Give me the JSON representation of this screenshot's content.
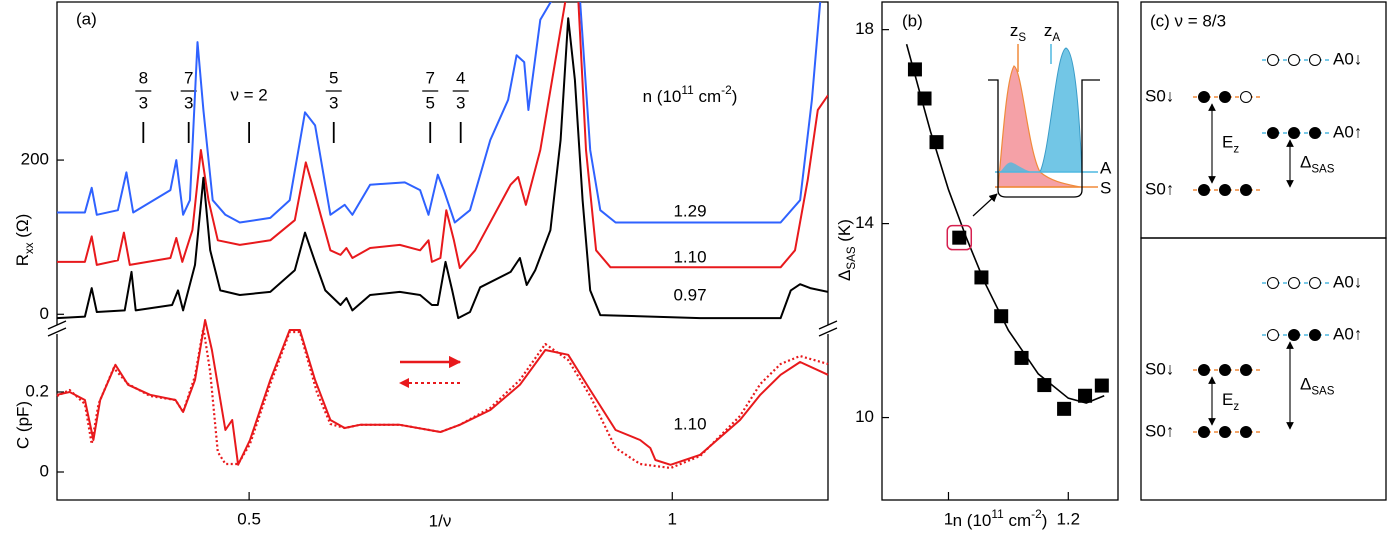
{
  "chart_data": [
    {
      "type": "line",
      "panel_label": "(a)",
      "ylabel": {
        "main": "R",
        "sub": "xx",
        "rest": " (Ω)"
      },
      "xlim": [
        0.273,
        1.184
      ],
      "ylim": [
        -10,
        405
      ],
      "yticks": [
        0,
        200
      ],
      "legend_title": [
        {
          "text": "n (10"
        },
        {
          "text": "11",
          "sup": true
        },
        {
          "text": " cm"
        },
        {
          "text": "-2",
          "sup": true
        },
        {
          "text": ")"
        }
      ],
      "filling_factors": [
        {
          "numerator": "8",
          "denominator": "3",
          "x": 0.375
        },
        {
          "numerator": "7",
          "denominator": "3",
          "x": 0.4286
        },
        {
          "text": "ν = 2",
          "x": 0.5
        },
        {
          "numerator": "5",
          "denominator": "3",
          "x": 0.6
        },
        {
          "numerator": "7",
          "denominator": "5",
          "x": 0.714
        },
        {
          "numerator": "4",
          "denominator": "3",
          "x": 0.75
        }
      ],
      "series": [
        {
          "name": "1.29",
          "color": "#2f62ff",
          "x": [
            0.273,
            0.306,
            0.314,
            0.32,
            0.345,
            0.355,
            0.363,
            0.407,
            0.414,
            0.422,
            0.43,
            0.439,
            0.446,
            0.457,
            0.472,
            0.489,
            0.525,
            0.548,
            0.566,
            0.578,
            0.596,
            0.613,
            0.622,
            0.643,
            0.684,
            0.702,
            0.712,
            0.723,
            0.73,
            0.743,
            0.761,
            0.785,
            0.806,
            0.816,
            0.825,
            0.83,
            0.844,
            0.858,
            0.874,
            0.891,
            0.903,
            0.915,
            0.933,
            1.128,
            1.151,
            1.165,
            1.175,
            1.184
          ],
          "values": [
            132,
            132,
            164,
            129,
            135,
            184,
            132,
            161,
            200,
            129,
            148,
            353,
            265,
            148,
            129,
            119,
            125,
            148,
            262,
            245,
            129,
            142,
            129,
            168,
            171,
            161,
            129,
            181,
            161,
            119,
            135,
            226,
            278,
            336,
            327,
            265,
            382,
            408,
            408,
            408,
            213,
            135,
            119,
            119,
            148,
            278,
            408,
            408
          ]
        },
        {
          "name": "1.10",
          "color": "#e8191c",
          "x": [
            0.273,
            0.306,
            0.314,
            0.32,
            0.345,
            0.352,
            0.359,
            0.407,
            0.414,
            0.421,
            0.433,
            0.443,
            0.452,
            0.463,
            0.489,
            0.525,
            0.554,
            0.567,
            0.578,
            0.596,
            0.608,
            0.615,
            0.622,
            0.643,
            0.678,
            0.702,
            0.712,
            0.716,
            0.726,
            0.733,
            0.742,
            0.749,
            0.767,
            0.809,
            0.818,
            0.827,
            0.844,
            0.862,
            0.874,
            0.889,
            0.898,
            0.91,
            0.927,
            1.128,
            1.145,
            1.16,
            1.172,
            1.184
          ],
          "values": [
            68,
            68,
            101,
            64,
            70,
            106,
            64,
            73,
            99,
            68,
            109,
            213,
            148,
            96,
            90,
            96,
            122,
            197,
            155,
            83,
            77,
            86,
            73,
            86,
            90,
            83,
            96,
            68,
            73,
            135,
            96,
            60,
            83,
            168,
            178,
            142,
            213,
            330,
            408,
            408,
            213,
            83,
            61,
            61,
            83,
            174,
            265,
            284
          ]
        },
        {
          "name": "0.97",
          "color": "#000000",
          "x": [
            0.273,
            0.306,
            0.314,
            0.32,
            0.353,
            0.361,
            0.366,
            0.409,
            0.416,
            0.422,
            0.436,
            0.446,
            0.454,
            0.466,
            0.489,
            0.525,
            0.554,
            0.566,
            0.578,
            0.59,
            0.608,
            0.615,
            0.622,
            0.643,
            0.678,
            0.702,
            0.716,
            0.723,
            0.732,
            0.74,
            0.747,
            0.761,
            0.773,
            0.809,
            0.82,
            0.828,
            0.838,
            0.856,
            0.868,
            0.877,
            0.885,
            0.894,
            0.903,
            0.915,
            1.033,
            1.128,
            1.14,
            1.151,
            1.163,
            1.184
          ],
          "values": [
            -5,
            -3,
            34,
            3,
            5,
            55,
            5,
            12,
            31,
            5,
            64,
            177,
            83,
            31,
            25,
            29,
            57,
            106,
            68,
            31,
            12,
            21,
            5,
            25,
            29,
            25,
            12,
            12,
            68,
            31,
            -5,
            3,
            35,
            55,
            73,
            38,
            57,
            109,
            226,
            384,
            304,
            148,
            31,
            -1,
            -5,
            -5,
            31,
            39,
            34,
            29
          ]
        }
      ]
    },
    {
      "type": "line",
      "ylabel": "C (pF)",
      "xlabel": "1/ν",
      "xlim": [
        0.273,
        1.184
      ],
      "xticks": [
        0.5,
        1
      ],
      "ylim": [
        -0.07,
        0.34
      ],
      "yticks": [
        0,
        0.2
      ],
      "annotation": "1.10",
      "series": [
        {
          "color": "#e8191c",
          "line_style": "solid",
          "x": [
            0.273,
            0.288,
            0.306,
            0.316,
            0.324,
            0.342,
            0.357,
            0.383,
            0.413,
            0.422,
            0.436,
            0.448,
            0.456,
            0.472,
            0.48,
            0.487,
            0.501,
            0.525,
            0.548,
            0.56,
            0.578,
            0.596,
            0.613,
            0.631,
            0.678,
            0.726,
            0.749,
            0.785,
            0.82,
            0.85,
            0.877,
            0.903,
            0.933,
            0.962,
            0.974,
            0.98,
            0.998,
            1.033,
            1.08,
            1.104,
            1.128,
            1.151,
            1.184
          ],
          "values": [
            0.193,
            0.2,
            0.18,
            0.08,
            0.18,
            0.268,
            0.218,
            0.193,
            0.18,
            0.15,
            0.23,
            0.38,
            0.305,
            0.105,
            0.13,
            0.018,
            0.08,
            0.23,
            0.355,
            0.355,
            0.23,
            0.13,
            0.11,
            0.118,
            0.118,
            0.1,
            0.118,
            0.155,
            0.218,
            0.305,
            0.293,
            0.205,
            0.105,
            0.08,
            0.06,
            0.03,
            0.018,
            0.043,
            0.13,
            0.193,
            0.243,
            0.275,
            0.243
          ]
        },
        {
          "color": "#e8191c",
          "line_style": "dotted",
          "x": [
            0.273,
            0.288,
            0.306,
            0.314,
            0.322,
            0.34,
            0.357,
            0.383,
            0.413,
            0.422,
            0.436,
            0.446,
            0.454,
            0.463,
            0.472,
            0.487,
            0.501,
            0.525,
            0.548,
            0.56,
            0.58,
            0.596,
            0.613,
            0.631,
            0.678,
            0.726,
            0.749,
            0.785,
            0.82,
            0.85,
            0.877,
            0.903,
            0.933,
            0.962,
            0.998,
            1.033,
            1.08,
            1.104,
            1.128,
            1.151,
            1.184
          ],
          "values": [
            0.19,
            0.205,
            0.17,
            0.07,
            0.17,
            0.26,
            0.22,
            0.19,
            0.18,
            0.15,
            0.24,
            0.36,
            0.25,
            0.05,
            0.02,
            0.02,
            0.07,
            0.22,
            0.35,
            0.35,
            0.2,
            0.12,
            0.11,
            0.118,
            0.118,
            0.1,
            0.118,
            0.16,
            0.23,
            0.32,
            0.28,
            0.19,
            0.06,
            0.02,
            0.01,
            0.04,
            0.14,
            0.22,
            0.27,
            0.29,
            0.27
          ]
        }
      ]
    },
    {
      "type": "scatter",
      "panel_label": "(b)",
      "ylabel": {
        "main": "Δ",
        "sub": "SAS",
        "rest": " (K)"
      },
      "xlabel": [
        {
          "text": "n (10"
        },
        {
          "text": "11",
          "sup": true
        },
        {
          "text": " cm"
        },
        {
          "text": "-2",
          "sup": true
        },
        {
          "text": ")"
        }
      ],
      "xlim": [
        0.889,
        1.283
      ],
      "xticks": [
        1,
        1.2
      ],
      "ylim": [
        8.3,
        18.57
      ],
      "yticks": [
        10,
        14,
        18
      ],
      "color": "#000000",
      "x": [
        0.944,
        0.96,
        0.98,
        1.018,
        1.055,
        1.088,
        1.122,
        1.16,
        1.193,
        1.228,
        1.256
      ],
      "values": [
        17.18,
        16.58,
        15.68,
        13.71,
        12.89,
        12.09,
        11.23,
        10.67,
        10.18,
        10.45,
        10.66
      ],
      "fit": {
        "color": "#000000",
        "x": [
          0.93,
          0.95,
          0.97,
          1.0,
          1.03,
          1.06,
          1.1,
          1.15,
          1.2,
          1.23,
          1.26
        ],
        "values": [
          17.7,
          16.8,
          15.9,
          14.7,
          13.7,
          12.8,
          11.8,
          10.9,
          10.4,
          10.3,
          10.45
        ]
      },
      "highlight_index": 3,
      "highlight_color": "#d6204f",
      "inset": {
        "zS": {
          "main": "z",
          "sub": "S"
        },
        "zA": {
          "main": "z",
          "sub": "A"
        },
        "A": "A",
        "S": "S",
        "symmetric_color": "#f08a3a",
        "antisymmetric_color": "#4fb8e0"
      }
    }
  ],
  "diagram": {
    "title": "(c) ν = 8/3",
    "panels": [
      {
        "levels": [
          {
            "label": "S0↓",
            "color": "#f08a3a",
            "filled": [
              true,
              true,
              false
            ]
          },
          {
            "label": "S0↑",
            "color": "#f08a3a",
            "filled": [
              true,
              true,
              true
            ]
          },
          {
            "label": "A0↓",
            "color": "#4fb8e0",
            "filled": [
              false,
              false,
              false
            ]
          },
          {
            "label": "A0↑",
            "color": "#4fb8e0",
            "filled": [
              true,
              true,
              true
            ]
          }
        ],
        "ez": {
          "main": "E",
          "sub": "z"
        },
        "delta": {
          "main": "Δ",
          "sub": "SAS"
        }
      },
      {
        "levels": [
          {
            "label": "S0↓",
            "color": "#f08a3a",
            "filled": [
              true,
              true,
              true
            ]
          },
          {
            "label": "S0↑",
            "color": "#f08a3a",
            "filled": [
              true,
              true,
              true
            ]
          },
          {
            "label": "A0↓",
            "color": "#4fb8e0",
            "filled": [
              false,
              false,
              false
            ]
          },
          {
            "label": "A0↑",
            "color": "#4fb8e0",
            "filled": [
              false,
              true,
              true
            ]
          }
        ],
        "ez": {
          "main": "E",
          "sub": "z"
        },
        "delta": {
          "main": "Δ",
          "sub": "SAS"
        }
      }
    ]
  }
}
